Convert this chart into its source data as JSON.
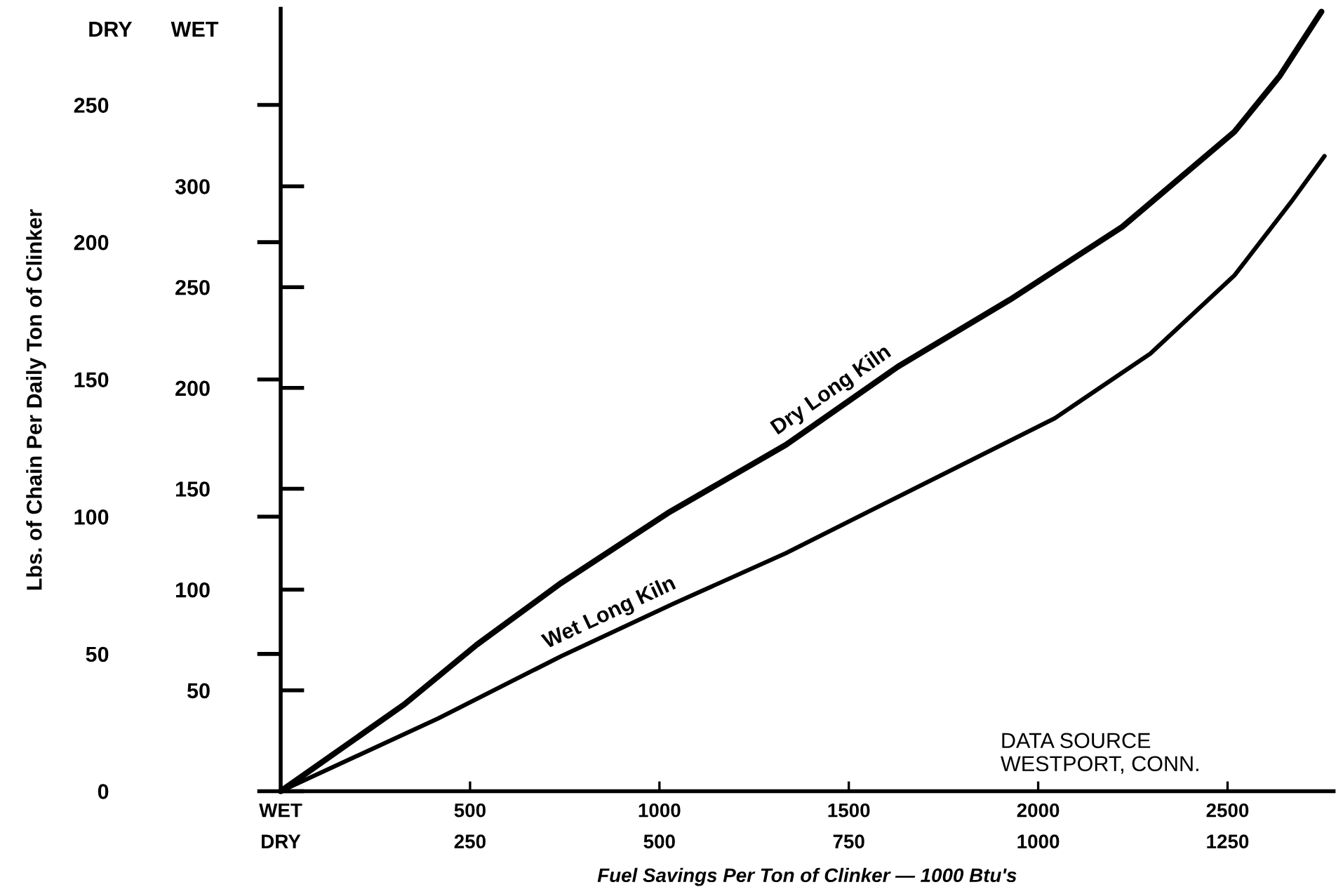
{
  "chart_data": {
    "type": "line",
    "xlabel": "Fuel Savings Per Ton of Clinker — 1000 Btu's",
    "ylabel": "Lbs. of Chain Per Daily Ton of Clinker",
    "annotations": [
      "DRY",
      "WET",
      "DATA SOURCE\nWESTPORT, CONN."
    ],
    "xlim": [
      0,
      2780
    ],
    "xticks": [
      {
        "value": 0,
        "label": "WET"
      },
      500,
      1000,
      1500,
      2000,
      2500
    ],
    "x2lim": [
      0,
      1390
    ],
    "x2ticks": [
      {
        "value": 0,
        "label": "DRY"
      },
      250,
      500,
      750,
      1000,
      1250
    ],
    "ylim": [
      0,
      285
    ],
    "yticks": [
      0,
      50,
      100,
      150,
      200,
      250
    ],
    "y2lim": [
      0,
      388
    ],
    "y2ticks": [
      {
        "value": 0,
        "label": null
      },
      50,
      100,
      150,
      200,
      250,
      300
    ],
    "series": [
      {
        "name": "Dry Long Kiln",
        "color": "#000000",
        "axis": "x2",
        "x": [
          0,
          163,
          259,
          370,
          511,
          667,
          815,
          963,
          1111,
          1259,
          1319,
          1374
        ],
        "values": [
          0,
          31.6,
          53.4,
          75.8,
          101.3,
          126.2,
          154.7,
          179.1,
          205.6,
          240.2,
          260.6,
          284
        ]
      },
      {
        "name": "Wet Long Kiln",
        "color": "#000000",
        "axis": "y2",
        "x": [
          0,
          415,
          741,
          1037,
          1333,
          1630,
          2044,
          2296,
          2519,
          2667,
          2756
        ],
        "values": [
          0,
          36,
          67,
          93,
          118,
          146,
          185,
          217,
          256,
          292,
          315
        ]
      }
    ]
  }
}
